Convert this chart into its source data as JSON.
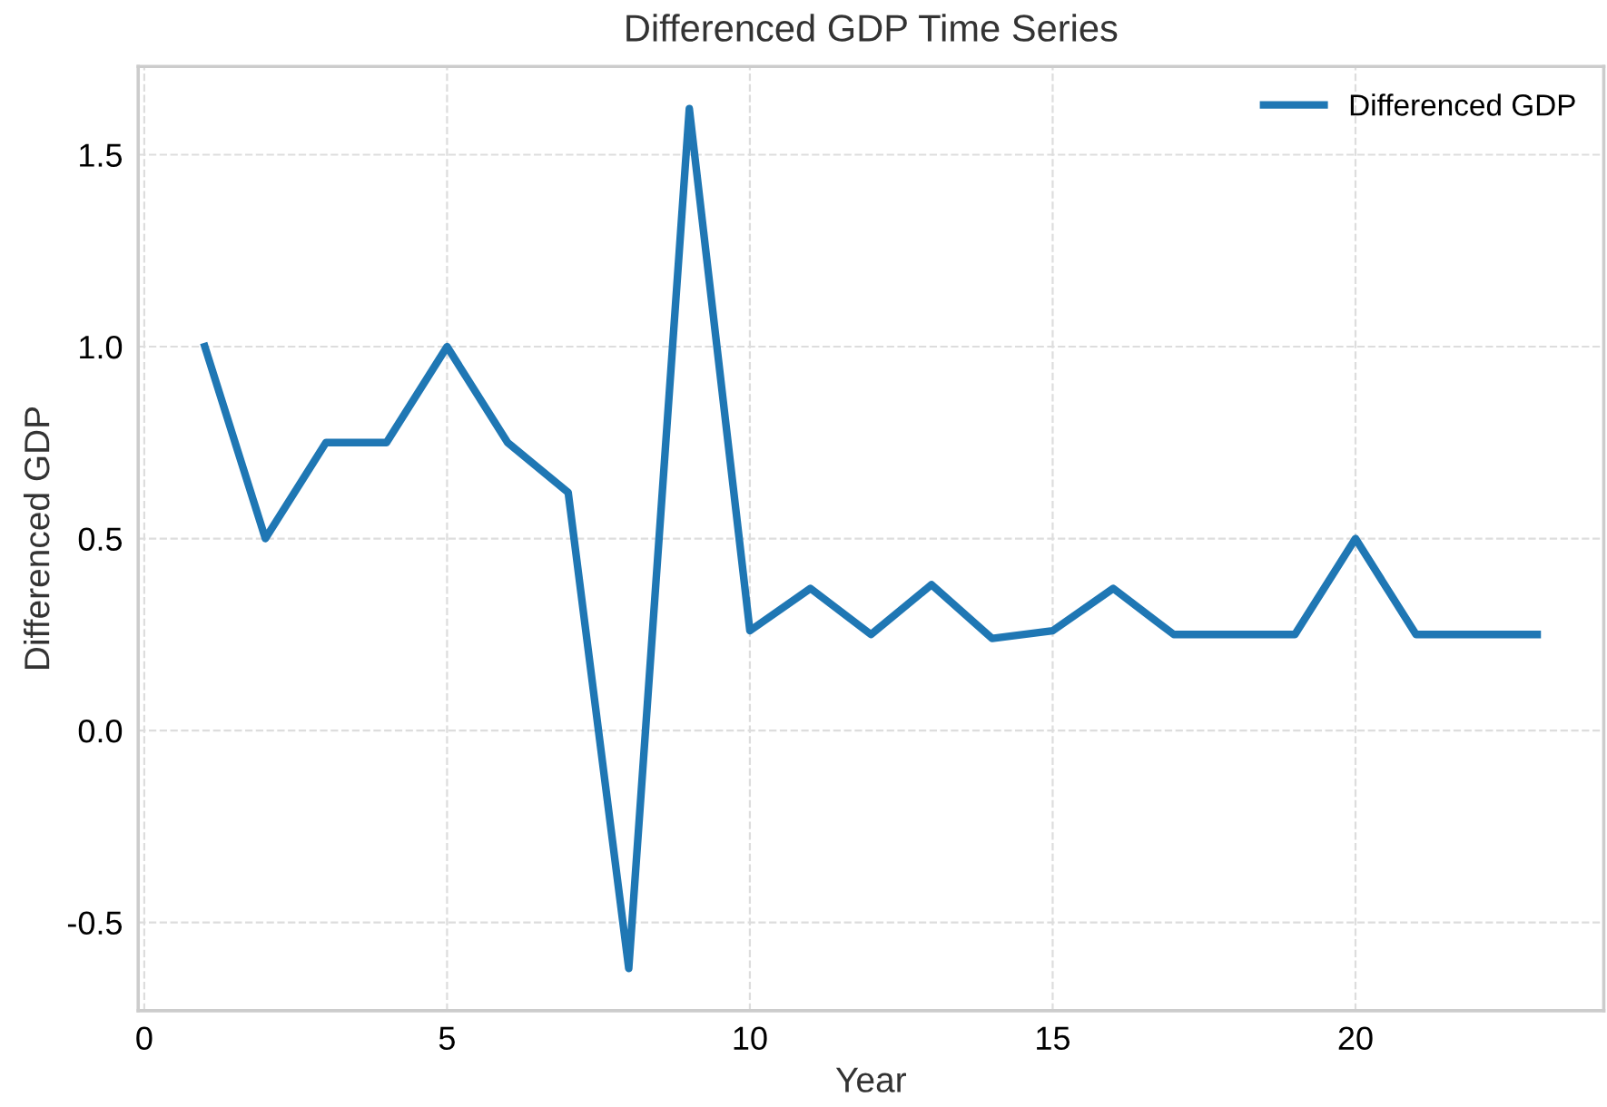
{
  "chart_data": {
    "type": "line",
    "title": "Differenced GDP Time Series",
    "xlabel": "Year",
    "ylabel": "Differenced GDP",
    "x": [
      1,
      2,
      3,
      4,
      5,
      6,
      7,
      8,
      9,
      10,
      11,
      12,
      13,
      14,
      15,
      16,
      17,
      18,
      19,
      20,
      21,
      22,
      23
    ],
    "series": [
      {
        "name": "Differenced GDP",
        "color": "#1f77b4",
        "values": [
          1.0,
          0.5,
          0.75,
          0.75,
          1.0,
          0.75,
          0.62,
          -0.62,
          1.62,
          0.26,
          0.37,
          0.25,
          0.38,
          0.24,
          0.26,
          0.37,
          0.25,
          0.25,
          0.25,
          0.5,
          0.25,
          0.25,
          0.25
        ]
      }
    ],
    "xlim": [
      -0.1,
      24.1
    ],
    "ylim": [
      -0.73,
      1.73
    ],
    "xticks": [
      0,
      5,
      10,
      15,
      20
    ],
    "yticks": [
      {
        "value": -0.5,
        "label": "-0.5"
      },
      {
        "value": 0,
        "label": "0.0"
      },
      {
        "value": 0.5,
        "label": "0.5"
      },
      {
        "value": 1,
        "label": "1.0"
      },
      {
        "value": 1.5,
        "label": "1.5"
      }
    ],
    "grid": true,
    "legend": "top right",
    "marker": "none",
    "line_style": "solid"
  }
}
